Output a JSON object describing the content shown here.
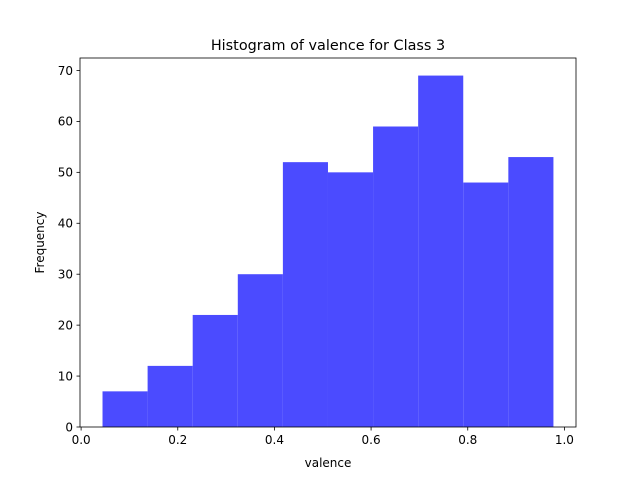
{
  "chart_data": {
    "type": "bar",
    "title": "Histogram of valence for Class 3",
    "xlabel": "valence",
    "ylabel": "Frequency",
    "bin_edges": [
      0.0443,
      0.1376,
      0.2309,
      0.3242,
      0.4175,
      0.5108,
      0.6041,
      0.6974,
      0.7907,
      0.884,
      0.9773
    ],
    "values": [
      7,
      12,
      22,
      30,
      52,
      50,
      59,
      69,
      48,
      53
    ],
    "xlim": [
      -0.0023,
      1.024
    ],
    "ylim": [
      0,
      72.45
    ],
    "xticks": [
      0.0,
      0.2,
      0.4,
      0.6,
      0.8,
      1.0
    ],
    "xtick_labels": [
      "0.0",
      "0.2",
      "0.4",
      "0.6",
      "0.8",
      "1.0"
    ],
    "yticks": [
      0,
      10,
      20,
      30,
      40,
      50,
      60,
      70
    ],
    "ytick_labels": [
      "0",
      "10",
      "20",
      "30",
      "40",
      "50",
      "60",
      "70"
    ],
    "bar_color": "#4b4bff",
    "grid": false,
    "legend": false
  }
}
